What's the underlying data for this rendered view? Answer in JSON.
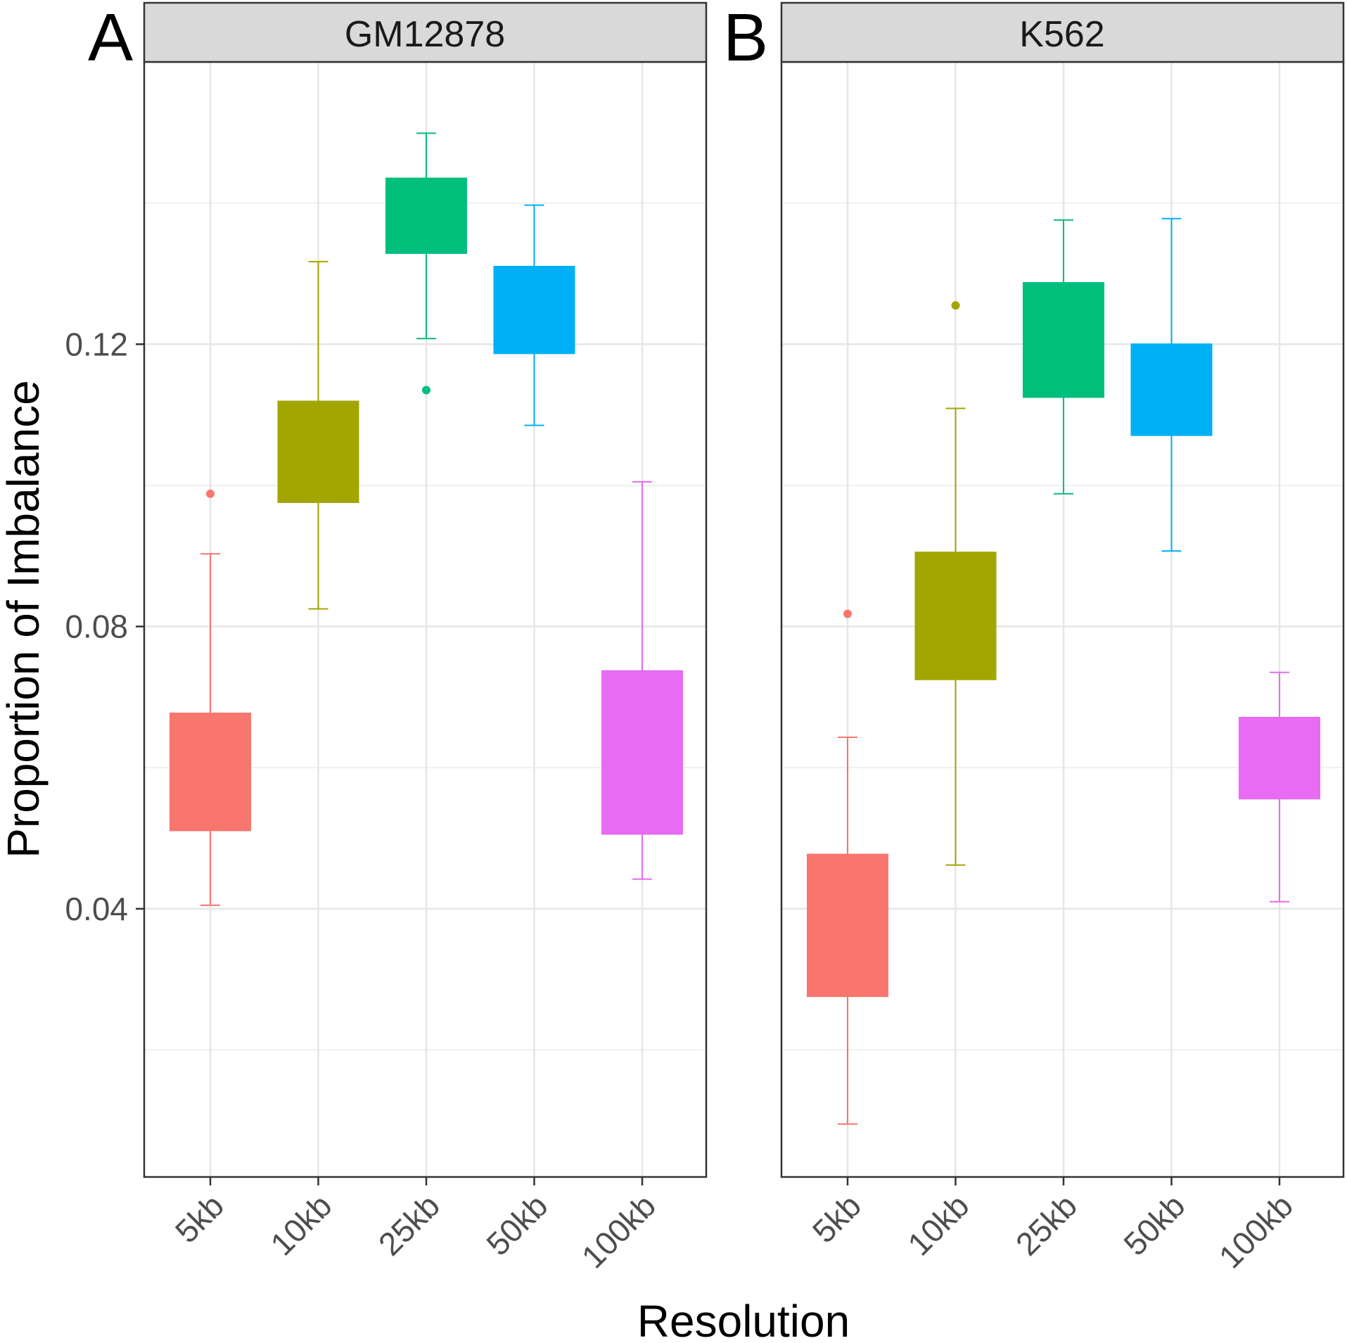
{
  "chart_data": {
    "type": "box",
    "xlabel": "Resolution",
    "ylabel": "Proportion of Imbalance",
    "ylim": [
      0.002,
      0.16
    ],
    "y_ticks": [
      0.04,
      0.08,
      0.12
    ],
    "y_tick_labels": [
      "0.04",
      "0.08",
      "0.12"
    ],
    "y_minor_gridlines": [
      0.02,
      0.06,
      0.1,
      0.14
    ],
    "grid": true,
    "categories": [
      "5kb",
      "10kb",
      "25kb",
      "50kb",
      "100kb"
    ],
    "colors": {
      "5kb": "#F8766D",
      "10kb": "#A3A500",
      "25kb": "#00BF7D",
      "50kb": "#00B0F6",
      "100kb": "#E76BF3"
    },
    "panels": [
      {
        "letter": "A",
        "strip": "GM12878",
        "boxes": [
          {
            "category": "5kb",
            "whisker_low": 0.0405,
            "q1": 0.051,
            "q3": 0.0678,
            "whisker_high": 0.0903,
            "outliers": [
              0.0988
            ]
          },
          {
            "category": "10kb",
            "whisker_low": 0.0825,
            "q1": 0.0975,
            "q3": 0.112,
            "whisker_high": 0.1317,
            "outliers": []
          },
          {
            "category": "25kb",
            "whisker_low": 0.1208,
            "q1": 0.1328,
            "q3": 0.1436,
            "whisker_high": 0.1499,
            "outliers": [
              0.1135
            ]
          },
          {
            "category": "50kb",
            "whisker_low": 0.1085,
            "q1": 0.1186,
            "q3": 0.1311,
            "whisker_high": 0.1397,
            "outliers": []
          },
          {
            "category": "100kb",
            "whisker_low": 0.0442,
            "q1": 0.0505,
            "q3": 0.0738,
            "whisker_high": 0.1005,
            "outliers": []
          }
        ]
      },
      {
        "letter": "B",
        "strip": "K562",
        "boxes": [
          {
            "category": "5kb",
            "whisker_low": 0.0095,
            "q1": 0.0275,
            "q3": 0.0478,
            "whisker_high": 0.0643,
            "outliers": [
              0.0818
            ]
          },
          {
            "category": "10kb",
            "whisker_low": 0.0462,
            "q1": 0.0724,
            "q3": 0.0906,
            "whisker_high": 0.1109,
            "outliers": [
              0.1255
            ]
          },
          {
            "category": "25kb",
            "whisker_low": 0.0988,
            "q1": 0.1124,
            "q3": 0.1288,
            "whisker_high": 0.1376,
            "outliers": []
          },
          {
            "category": "50kb",
            "whisker_low": 0.0907,
            "q1": 0.107,
            "q3": 0.1201,
            "whisker_high": 0.1378,
            "outliers": []
          },
          {
            "category": "100kb",
            "whisker_low": 0.041,
            "q1": 0.0555,
            "q3": 0.0672,
            "whisker_high": 0.0735,
            "outliers": []
          }
        ]
      }
    ]
  }
}
